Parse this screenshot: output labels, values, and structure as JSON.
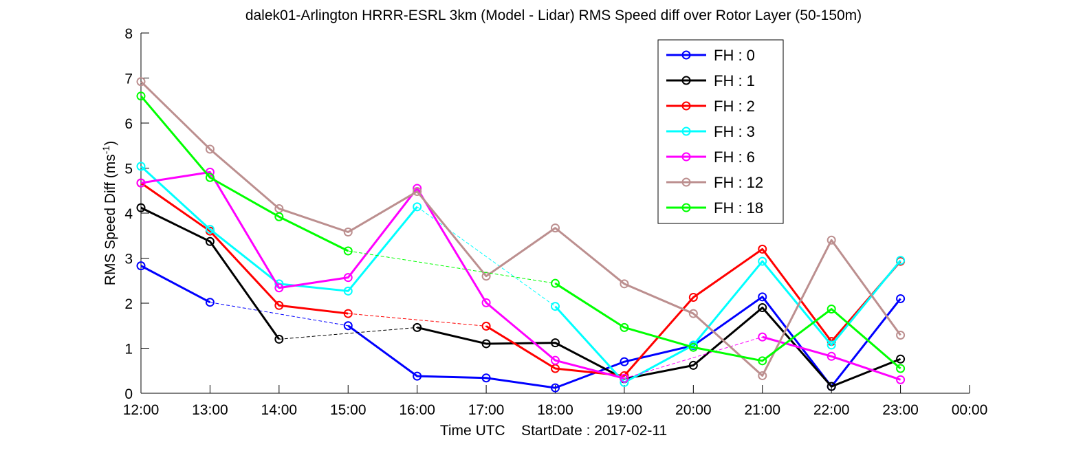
{
  "chart_data": {
    "type": "line",
    "title": "dalek01-Arlington HRRR-ESRL 3km (Model - Lidar) RMS Speed diff over Rotor Layer (50-150m)",
    "xlabel": "Time UTC    StartDate : 2017-02-11",
    "ylabel": "RMS Speed Diff (ms",
    "ylabel_sup": "-1",
    "ylabel_close": ")",
    "x_tick_labels": [
      "12:00",
      "13:00",
      "14:00",
      "15:00",
      "16:00",
      "17:00",
      "18:00",
      "19:00",
      "20:00",
      "21:00",
      "22:00",
      "23:00",
      "00:00"
    ],
    "y_ticks": [
      0,
      1,
      2,
      3,
      4,
      5,
      6,
      7,
      8
    ],
    "ylim": [
      0,
      8
    ],
    "xlim_hours": [
      12,
      24
    ],
    "legend_position": "top-right",
    "grid": false,
    "series": [
      {
        "name": "FH : 0",
        "color": "#0000ff",
        "values": [
          2.83,
          2.02,
          null,
          1.5,
          0.38,
          0.34,
          0.12,
          0.7,
          1.06,
          2.14,
          0.15,
          2.1
        ]
      },
      {
        "name": "FH : 1",
        "color": "#000000",
        "values": [
          4.12,
          3.37,
          1.2,
          null,
          1.46,
          1.1,
          1.12,
          0.32,
          0.62,
          1.9,
          0.15,
          0.76
        ]
      },
      {
        "name": "FH : 2",
        "color": "#ff0000",
        "values": [
          4.67,
          3.6,
          1.95,
          1.77,
          null,
          1.49,
          0.55,
          0.39,
          2.13,
          3.2,
          1.15,
          2.93
        ]
      },
      {
        "name": "FH : 3",
        "color": "#00ffff",
        "values": [
          5.04,
          3.64,
          2.43,
          2.27,
          4.14,
          null,
          1.93,
          0.24,
          1.07,
          2.93,
          1.07,
          2.95
        ]
      },
      {
        "name": "FH : 6",
        "color": "#ff00ff",
        "values": [
          4.67,
          4.91,
          2.34,
          2.57,
          4.55,
          2.01,
          0.73,
          0.33,
          null,
          1.25,
          0.82,
          0.3
        ]
      },
      {
        "name": "FH : 12",
        "color": "#bc8f8f",
        "values": [
          6.92,
          5.42,
          4.1,
          3.58,
          4.48,
          2.6,
          3.67,
          2.43,
          1.77,
          0.39,
          3.4,
          1.29
        ]
      },
      {
        "name": "FH : 18",
        "color": "#00ff00",
        "values": [
          6.6,
          4.79,
          3.92,
          3.16,
          null,
          null,
          2.44,
          1.46,
          1.02,
          0.72,
          1.87,
          0.55
        ]
      }
    ]
  }
}
